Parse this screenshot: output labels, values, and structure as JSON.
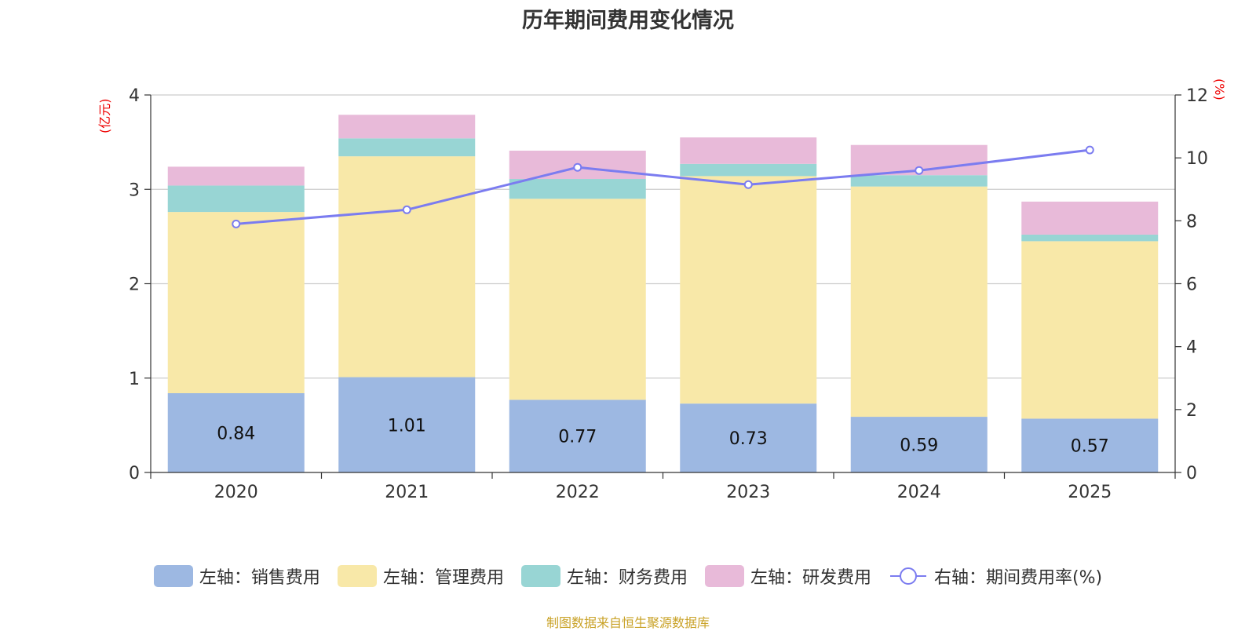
{
  "chart_data": {
    "type": "bar",
    "title": "历年期间费用变化情况",
    "categories": [
      "2020",
      "2021",
      "2022",
      "2023",
      "2024",
      "2025"
    ],
    "y_left": {
      "label": "(亿元)",
      "range": [
        0,
        4
      ],
      "ticks": [
        "0",
        "1",
        "2",
        "3",
        "4"
      ]
    },
    "y_right": {
      "label": "(%)",
      "range": [
        0,
        12
      ],
      "ticks": [
        "0",
        "2",
        "4",
        "6",
        "8",
        "10",
        "12"
      ]
    },
    "series": [
      {
        "name": "左轴：销售费用",
        "kind": "bar",
        "stack": "total",
        "color": "#9db8e2",
        "values": [
          0.84,
          1.01,
          0.77,
          0.73,
          0.59,
          0.57
        ],
        "labels": [
          "0.84",
          "1.01",
          "0.77",
          "0.73",
          "0.59",
          "0.57"
        ]
      },
      {
        "name": "左轴：管理费用",
        "kind": "bar",
        "stack": "total",
        "color": "#f8e8a8",
        "values": [
          1.92,
          2.34,
          2.13,
          2.41,
          2.44,
          1.88
        ]
      },
      {
        "name": "左轴：财务费用",
        "kind": "bar",
        "stack": "total",
        "color": "#98d5d4",
        "values": [
          0.28,
          0.19,
          0.21,
          0.13,
          0.12,
          0.07
        ]
      },
      {
        "name": "左轴：研发费用",
        "kind": "bar",
        "stack": "total",
        "color": "#e8bad9",
        "values": [
          0.2,
          0.25,
          0.3,
          0.28,
          0.32,
          0.35
        ]
      },
      {
        "name": "右轴：期间费用率(%)",
        "kind": "line",
        "axis": "right",
        "color": "#7b7cf0",
        "values": [
          7.9,
          8.35,
          9.7,
          9.15,
          9.6,
          10.25
        ]
      }
    ],
    "grid": true,
    "legend": "bottom-center"
  },
  "footer": "制图数据来自恒生聚源数据库"
}
